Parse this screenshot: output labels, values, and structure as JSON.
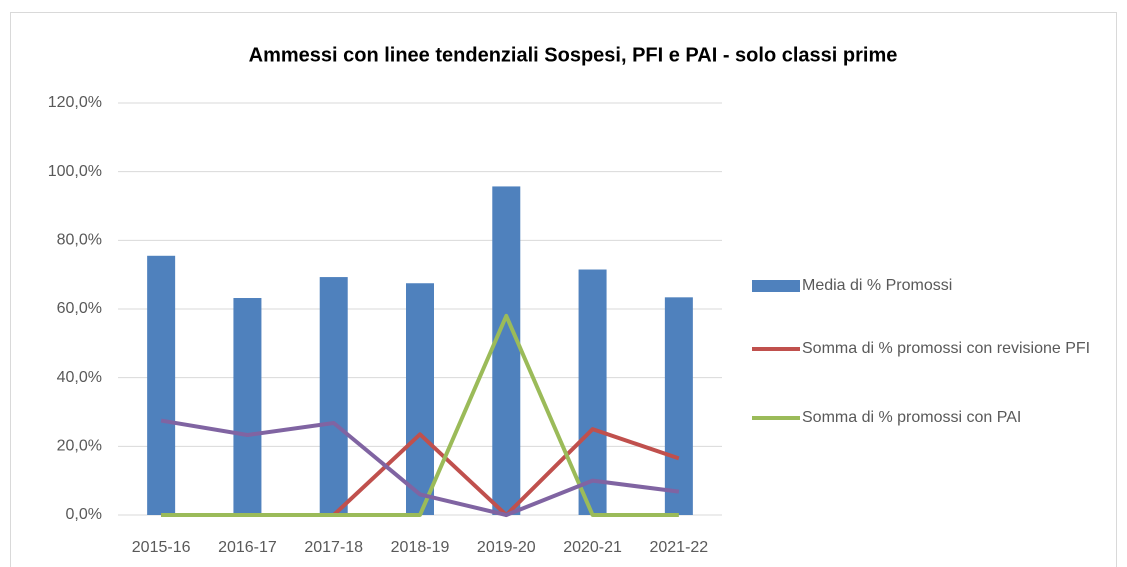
{
  "chart_data": {
    "type": "bar_line",
    "title": "Ammessi con linee tendenziali Sospesi, PFI e PAI - solo classi prime",
    "categories": [
      "2015-16",
      "2016-17",
      "2017-18",
      "2018-19",
      "2019-20",
      "2020-21",
      "2021-22"
    ],
    "series": [
      {
        "name": "Media di % Promossi",
        "type": "bar",
        "color": "#4f81bd",
        "values": [
          75.5,
          63.2,
          69.3,
          67.5,
          95.7,
          71.5,
          63.4
        ]
      },
      {
        "name": "Somma di % promossi con revisione PFI",
        "type": "line",
        "color": "#c0504d",
        "values": [
          0,
          0,
          0,
          23.5,
          0,
          25,
          16.5
        ]
      },
      {
        "name": "Somma di % promossi con PAI",
        "type": "line",
        "color": "#9bbb59",
        "values": [
          0,
          0,
          0,
          0,
          58,
          0,
          0
        ]
      },
      {
        "type": "line",
        "color": "#8064a2",
        "values": [
          27.5,
          23.3,
          26.8,
          6,
          0,
          10,
          6.8
        ]
      }
    ],
    "ylim": [
      0,
      120
    ],
    "yticks": [
      {
        "value": 0,
        "label": "0,0%"
      },
      {
        "value": 20,
        "label": "20,0%"
      },
      {
        "value": 40,
        "label": "40,0%"
      },
      {
        "value": 60,
        "label": "60,0%"
      },
      {
        "value": 80,
        "label": "80,0%"
      },
      {
        "value": 100,
        "label": "100,0%"
      },
      {
        "value": 120,
        "label": "120,0%"
      }
    ],
    "grid": true,
    "legend": "right"
  }
}
